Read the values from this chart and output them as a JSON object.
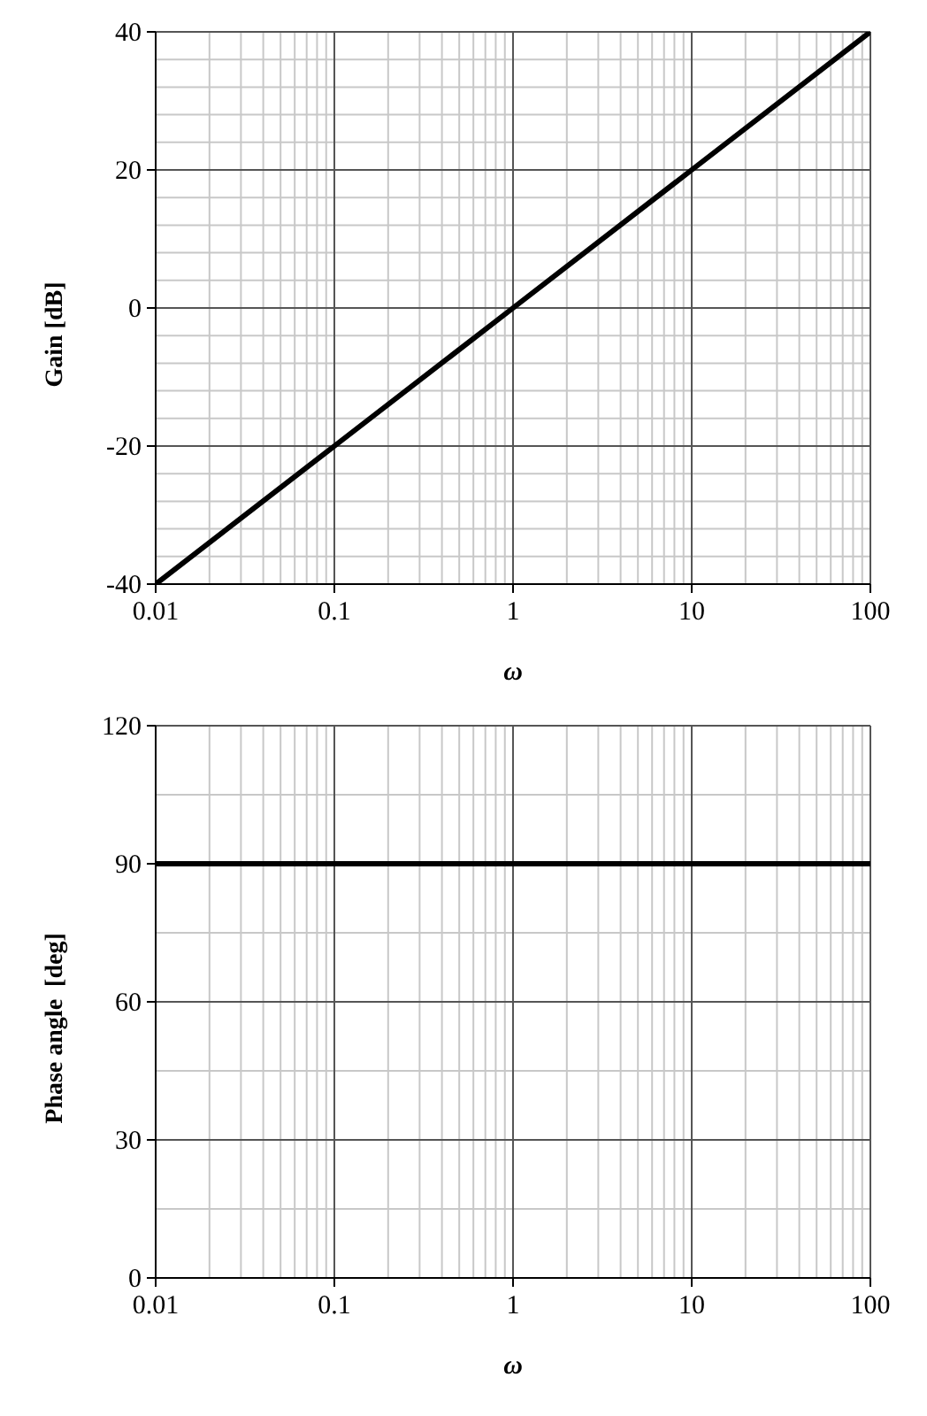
{
  "chart_data": [
    {
      "type": "line",
      "xlabel": "ω",
      "ylabel": "Gain [dB]",
      "log": "x",
      "grid": true,
      "marker": "none",
      "line_style": "solid",
      "x": [
        0.01,
        0.1,
        1,
        10,
        100
      ],
      "series": [
        {
          "color": "#000000",
          "values": [
            -40,
            -20,
            0,
            20,
            40
          ]
        }
      ],
      "xlim": [
        0.01,
        100
      ],
      "xticks": [
        0.01,
        {
          "value": 0.02,
          "label": null
        },
        {
          "value": 0.03,
          "label": null
        },
        {
          "value": 0.04,
          "label": null
        },
        {
          "value": 0.05,
          "label": null
        },
        {
          "value": 0.06,
          "label": null
        },
        {
          "value": 0.07,
          "label": null
        },
        {
          "value": 0.08,
          "label": null
        },
        {
          "value": 0.09,
          "label": null
        },
        0.1,
        {
          "value": 0.2,
          "label": null
        },
        {
          "value": 0.3,
          "label": null
        },
        {
          "value": 0.4,
          "label": null
        },
        {
          "value": 0.5,
          "label": null
        },
        {
          "value": 0.6,
          "label": null
        },
        {
          "value": 0.7,
          "label": null
        },
        {
          "value": 0.8,
          "label": null
        },
        {
          "value": 0.9,
          "label": null
        },
        1,
        {
          "value": 2,
          "label": null
        },
        {
          "value": 3,
          "label": null
        },
        {
          "value": 4,
          "label": null
        },
        {
          "value": 5,
          "label": null
        },
        {
          "value": 6,
          "label": null
        },
        {
          "value": 7,
          "label": null
        },
        {
          "value": 8,
          "label": null
        },
        {
          "value": 9,
          "label": null
        },
        10,
        {
          "value": 20,
          "label": null
        },
        {
          "value": 30,
          "label": null
        },
        {
          "value": 40,
          "label": null
        },
        {
          "value": 50,
          "label": null
        },
        {
          "value": 60,
          "label": null
        },
        {
          "value": 70,
          "label": null
        },
        {
          "value": 80,
          "label": null
        },
        {
          "value": 90,
          "label": null
        },
        100
      ],
      "ylim": [
        -40,
        40
      ],
      "yticks": [
        -40,
        {
          "value": -36,
          "label": null
        },
        {
          "value": -32,
          "label": null
        },
        {
          "value": -28,
          "label": null
        },
        {
          "value": -24,
          "label": null
        },
        -20,
        {
          "value": -16,
          "label": null
        },
        {
          "value": -12,
          "label": null
        },
        {
          "value": -8,
          "label": null
        },
        {
          "value": -4,
          "label": null
        },
        0,
        {
          "value": 4,
          "label": null
        },
        {
          "value": 8,
          "label": null
        },
        {
          "value": 12,
          "label": null
        },
        {
          "value": 16,
          "label": null
        },
        20,
        {
          "value": 24,
          "label": null
        },
        {
          "value": 28,
          "label": null
        },
        {
          "value": 32,
          "label": null
        },
        {
          "value": 36,
          "label": null
        },
        40
      ]
    },
    {
      "type": "line",
      "xlabel": "ω",
      "ylabel": "Phase angle  [deg]",
      "log": "x",
      "grid": true,
      "marker": "none",
      "line_style": "solid",
      "x": [
        0.01,
        0.1,
        1,
        10,
        100
      ],
      "series": [
        {
          "color": "#000000",
          "values": [
            90,
            90,
            90,
            90,
            90
          ]
        }
      ],
      "xlim": [
        0.01,
        100
      ],
      "xticks": [
        0.01,
        {
          "value": 0.02,
          "label": null
        },
        {
          "value": 0.03,
          "label": null
        },
        {
          "value": 0.04,
          "label": null
        },
        {
          "value": 0.05,
          "label": null
        },
        {
          "value": 0.06,
          "label": null
        },
        {
          "value": 0.07,
          "label": null
        },
        {
          "value": 0.08,
          "label": null
        },
        {
          "value": 0.09,
          "label": null
        },
        0.1,
        {
          "value": 0.2,
          "label": null
        },
        {
          "value": 0.3,
          "label": null
        },
        {
          "value": 0.4,
          "label": null
        },
        {
          "value": 0.5,
          "label": null
        },
        {
          "value": 0.6,
          "label": null
        },
        {
          "value": 0.7,
          "label": null
        },
        {
          "value": 0.8,
          "label": null
        },
        {
          "value": 0.9,
          "label": null
        },
        1,
        {
          "value": 2,
          "label": null
        },
        {
          "value": 3,
          "label": null
        },
        {
          "value": 4,
          "label": null
        },
        {
          "value": 5,
          "label": null
        },
        {
          "value": 6,
          "label": null
        },
        {
          "value": 7,
          "label": null
        },
        {
          "value": 8,
          "label": null
        },
        {
          "value": 9,
          "label": null
        },
        10,
        {
          "value": 20,
          "label": null
        },
        {
          "value": 30,
          "label": null
        },
        {
          "value": 40,
          "label": null
        },
        {
          "value": 50,
          "label": null
        },
        {
          "value": 60,
          "label": null
        },
        {
          "value": 70,
          "label": null
        },
        {
          "value": 80,
          "label": null
        },
        {
          "value": 90,
          "label": null
        },
        100
      ],
      "ylim": [
        0,
        120
      ],
      "yticks": [
        0,
        {
          "value": 15,
          "label": null
        },
        30,
        {
          "value": 45,
          "label": null
        },
        60,
        {
          "value": 75,
          "label": null
        },
        90,
        {
          "value": 105,
          "label": null
        },
        120
      ]
    }
  ]
}
